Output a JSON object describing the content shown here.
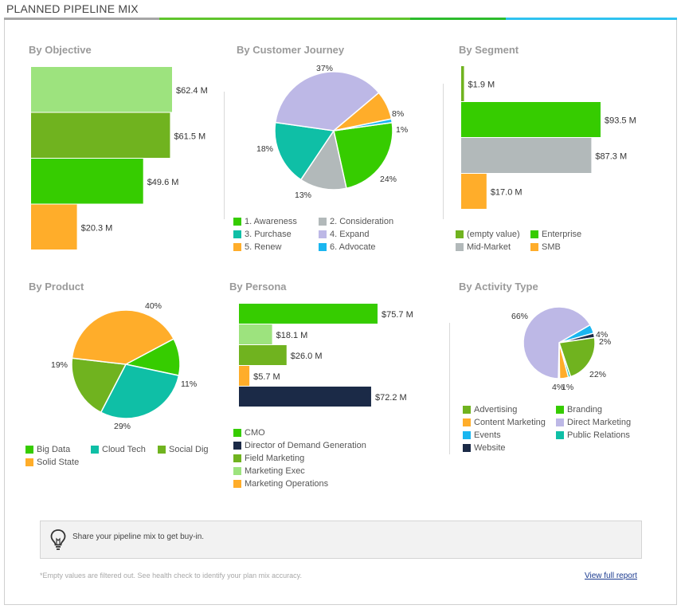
{
  "title": "PLANNED PIPELINE MIX",
  "title_bar_colors": [
    "#a6a6a6",
    "#5fc42c",
    "#2cbb2c",
    "#2ec2f0"
  ],
  "sections": {
    "objective": "By Objective",
    "journey": "By Customer Journey",
    "segment": "By Segment",
    "product": "By Product",
    "persona": "By Persona",
    "activity": "By Activity Type"
  },
  "chart_data": [
    {
      "id": "objective",
      "type": "bar",
      "orientation": "horizontal",
      "title": "By Objective",
      "categories": [
        "",
        "",
        "",
        ""
      ],
      "values": [
        62.4,
        61.5,
        49.6,
        20.3
      ],
      "value_labels": [
        "$62.4 M",
        "$61.5 M",
        "$49.6 M",
        "$20.3 M"
      ],
      "colors": [
        "#9de37e",
        "#70b31f",
        "#36cc00",
        "#ffad2a"
      ],
      "unit": "$M"
    },
    {
      "id": "journey",
      "type": "pie",
      "title": "By Customer Journey",
      "labels": [
        "1. Awareness",
        "2. Consideration",
        "3. Purchase",
        "4. Expand",
        "5. Renew",
        "6. Advocate"
      ],
      "values": [
        24,
        13,
        18,
        37,
        8,
        1
      ],
      "value_labels": [
        "24%",
        "13%",
        "18%",
        "37%",
        "8%",
        "1%"
      ],
      "colors": [
        "#36cc00",
        "#b2b9ba",
        "#0fbfa6",
        "#bdb8e6",
        "#ffad2a",
        "#1ab6f0"
      ]
    },
    {
      "id": "segment",
      "type": "bar",
      "orientation": "horizontal",
      "title": "By Segment",
      "categories": [
        "(empty value)",
        "Enterprise",
        "Mid-Market",
        "SMB"
      ],
      "values": [
        1.9,
        93.5,
        87.3,
        17.0
      ],
      "value_labels": [
        "$1.9 M",
        "$93.5 M",
        "$87.3 M",
        "$17.0 M"
      ],
      "colors": [
        "#70b31f",
        "#36cc00",
        "#b2b9ba",
        "#ffad2a"
      ],
      "unit": "$M"
    },
    {
      "id": "product",
      "type": "pie",
      "title": "By Product",
      "labels": [
        "Big Data",
        "Cloud Tech",
        "Social Dig",
        "Solid State"
      ],
      "values": [
        11,
        29,
        19,
        40
      ],
      "value_labels": [
        "11%",
        "29%",
        "19%",
        "40%"
      ],
      "colors": [
        "#36cc00",
        "#0fbfa6",
        "#70b31f",
        "#ffad2a"
      ]
    },
    {
      "id": "persona",
      "type": "bar",
      "orientation": "horizontal",
      "title": "By Persona",
      "categories": [
        "CMO",
        "Director of Demand Generation",
        "Field Marketing",
        "Marketing Exec",
        "Marketing Operations"
      ],
      "bar_order": [
        "CMO",
        "Marketing Exec",
        "Field Marketing",
        "Marketing Operations",
        "Director of Demand Generation"
      ],
      "values": [
        75.7,
        72.2,
        26.0,
        18.1,
        5.7
      ],
      "value_labels": [
        "$75.7 M",
        "$72.2 M",
        "$26.0 M",
        "$18.1 M",
        "$5.7 M"
      ],
      "colors": [
        "#36cc00",
        "#1b2a47",
        "#70b31f",
        "#9de37e",
        "#ffad2a"
      ],
      "unit": "$M"
    },
    {
      "id": "activity",
      "type": "pie",
      "title": "By Activity Type",
      "labels": [
        "Advertising",
        "Branding",
        "Content Marketing",
        "Direct Marketing",
        "Events",
        "Public Relations",
        "Website"
      ],
      "values": [
        22,
        0.5,
        4,
        66,
        4,
        1,
        2
      ],
      "slice_order": [
        "Events",
        "Website",
        "Advertising",
        "Public Relations",
        "Content Marketing",
        "Branding",
        "Direct Marketing"
      ],
      "value_labels": [
        "22%",
        "",
        "4%",
        "66%",
        "4%",
        "1%",
        "2%"
      ],
      "colors": [
        "#70b31f",
        "#36cc00",
        "#ffad2a",
        "#bdb8e6",
        "#1ab6f0",
        "#0fbfa6",
        "#1b2a47"
      ]
    }
  ],
  "legends": {
    "journey": [
      "1. Awareness",
      "2. Consideration",
      "3. Purchase",
      "4. Expand",
      "5. Renew",
      "6. Advocate"
    ],
    "segment": [
      "(empty value)",
      "Enterprise",
      "Mid-Market",
      "SMB"
    ],
    "product": [
      "Big Data",
      "Cloud Tech",
      "Social Dig",
      "Solid State"
    ],
    "persona": [
      "CMO",
      "Director of Demand Generation",
      "Field Marketing",
      "Marketing Exec",
      "Marketing Operations"
    ],
    "activity": [
      "Advertising",
      "Branding",
      "Content Marketing",
      "Direct Marketing",
      "Events",
      "Public Relations",
      "Website"
    ]
  },
  "tip": {
    "icon": "lightbulb-icon",
    "text": "Share your pipeline mix to get buy-in."
  },
  "footnote": "*Empty values are filtered out. See health check to identify your plan mix accuracy.",
  "link_text": "View full report"
}
